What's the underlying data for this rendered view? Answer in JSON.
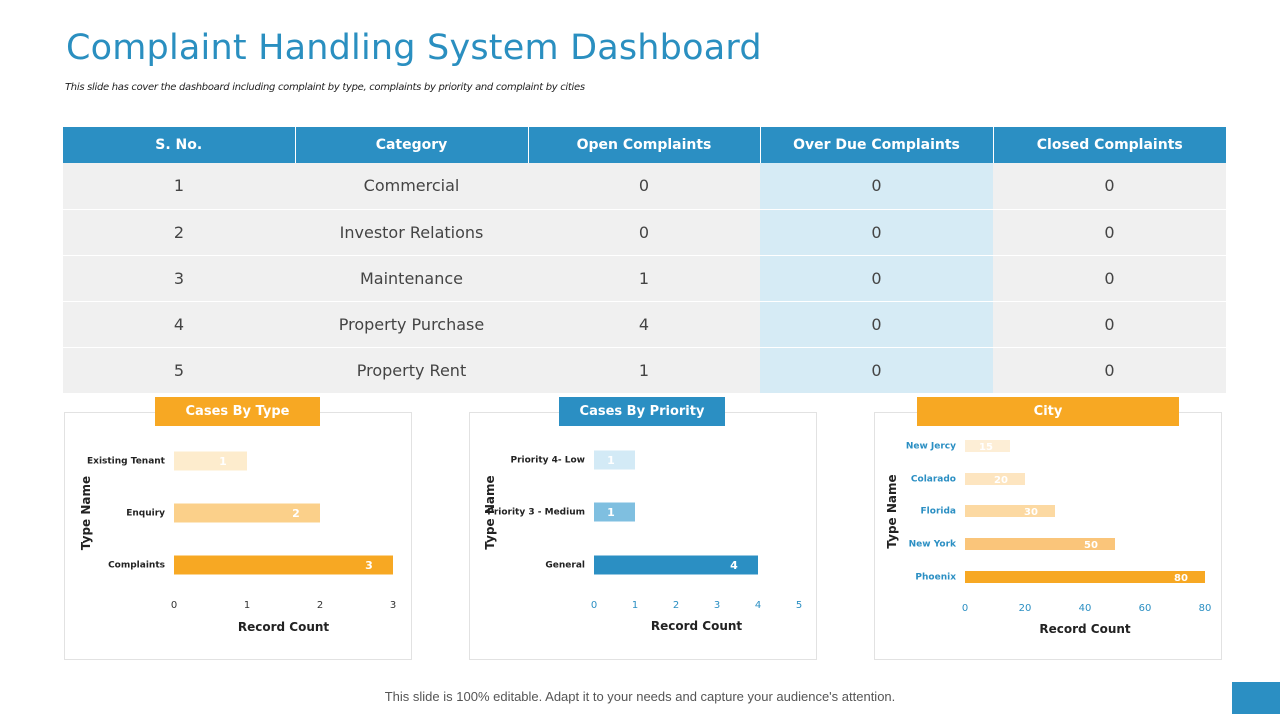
{
  "title": "Complaint Handling System Dashboard",
  "subtitle": "This slide has cover the dashboard including complaint by type, complaints by priority and complaint by cities",
  "table": {
    "headers": [
      "S. No.",
      "Category",
      "Open Complaints",
      "Over Due Complaints",
      "Closed Complaints"
    ],
    "rows": [
      [
        "1",
        "Commercial",
        "0",
        "0",
        "0"
      ],
      [
        "2",
        "Investor Relations",
        "0",
        "0",
        "0"
      ],
      [
        "3",
        "Maintenance",
        "1",
        "0",
        "0"
      ],
      [
        "4",
        "Property Purchase",
        "4",
        "0",
        "0"
      ],
      [
        "5",
        "Property Rent",
        "1",
        "0",
        "0"
      ]
    ]
  },
  "chart_data": [
    {
      "type": "bar",
      "orientation": "horizontal",
      "title": "Cases By Type",
      "categories": [
        "Existing Tenant",
        "Enquiry",
        "Complaints"
      ],
      "values": [
        1,
        2,
        3
      ],
      "colors": [
        "#fdeccd",
        "#fbd08a",
        "#f7a823"
      ],
      "xlabel": "Record Count",
      "ylabel": "Type Name",
      "xlim": [
        0,
        3
      ],
      "ticks": [
        0,
        1,
        2,
        3
      ]
    },
    {
      "type": "bar",
      "orientation": "horizontal",
      "title": "Cases By Priority",
      "categories": [
        "Priority 4- Low",
        "Priority 3 - Medium",
        "General"
      ],
      "values": [
        1,
        1,
        4
      ],
      "colors": [
        "#d3eaf6",
        "#7fbfe0",
        "#2b8fc3"
      ],
      "xlabel": "Record Count",
      "ylabel": "Type Name",
      "xlim": [
        0,
        5
      ],
      "ticks": [
        0,
        1,
        2,
        3,
        4,
        5
      ]
    },
    {
      "type": "bar",
      "orientation": "horizontal",
      "title": "City",
      "categories": [
        "New Jercy",
        "Colarado",
        "Florida",
        "New York",
        "Phoenix"
      ],
      "values": [
        15,
        20,
        30,
        50,
        80
      ],
      "colors": [
        "#fdeed6",
        "#fde5c0",
        "#fcd9a2",
        "#fac57a",
        "#f7a823"
      ],
      "xlabel": "Record Count",
      "ylabel": "Type Name",
      "xlim": [
        0,
        80
      ],
      "ticks": [
        0,
        20,
        40,
        60,
        80
      ]
    }
  ],
  "footer": "This slide is 100% editable. Adapt it to your needs and capture your audience's attention."
}
